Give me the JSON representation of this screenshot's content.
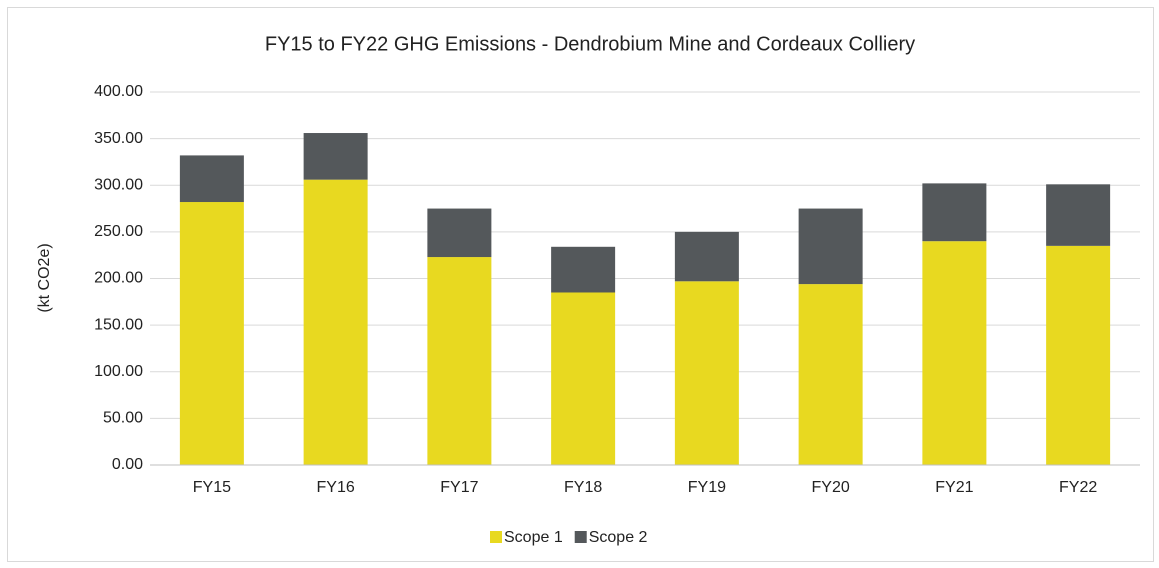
{
  "chart_data": {
    "type": "stacked_bar",
    "title": "FY15 to FY22 GHG Emissions - Dendrobium Mine and Cordeaux Colliery",
    "y_label": "(kt CO2e)",
    "categories": [
      "FY15",
      "FY16",
      "FY17",
      "FY18",
      "FY19",
      "FY20",
      "FY21",
      "FY22"
    ],
    "series": [
      {
        "name": "Scope 1",
        "color": "#e8d920",
        "values": [
          282,
          306,
          223,
          185,
          197,
          194,
          240,
          235
        ]
      },
      {
        "name": "Scope 2",
        "color": "#54585b",
        "values": [
          50,
          50,
          52,
          49,
          53,
          81,
          62,
          66
        ]
      }
    ],
    "ylim": [
      0,
      400
    ],
    "yticks": [
      {
        "value": 0,
        "label": "0.00"
      },
      {
        "value": 50,
        "label": "50.00"
      },
      {
        "value": 100,
        "label": "100.00"
      },
      {
        "value": 150,
        "label": "150.00"
      },
      {
        "value": 200,
        "label": "200.00"
      },
      {
        "value": 250,
        "label": "250.00"
      },
      {
        "value": 300,
        "label": "300.00"
      },
      {
        "value": 350,
        "label": "350.00"
      },
      {
        "value": 400,
        "label": "400.00"
      }
    ],
    "grid": true,
    "legend": "bottom"
  }
}
